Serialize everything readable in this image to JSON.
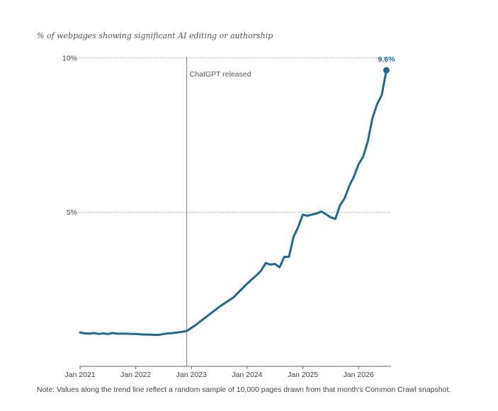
{
  "chart_data": {
    "type": "line",
    "subtitle": "% of webpages showing significant AI editing or authorship",
    "note": "Note: Values along the trend line reflect a random sample of 10,000 pages drawn from that month's Common Crawl snapshot.",
    "y_ticks": [
      {
        "value": 10,
        "label": "10%"
      },
      {
        "value": 5,
        "label": "5%"
      }
    ],
    "x_ticks": [
      {
        "value": "2021-01",
        "label": "Jan 2021"
      },
      {
        "value": "2022-01",
        "label": "Jan 2022"
      },
      {
        "value": "2023-01",
        "label": "Jan 2023"
      },
      {
        "value": "2024-01",
        "label": "Jan 2024"
      },
      {
        "value": "2025-01",
        "label": "Jan 2025"
      },
      {
        "value": "2026-01",
        "label": "Jan 2026"
      }
    ],
    "ylim": [
      0,
      10.5
    ],
    "xlim": [
      "2021-01",
      "2026-08"
    ],
    "grid": "dotted horizontal at tick values",
    "annotation": {
      "x": "2022-12",
      "label": "ChatGPT released"
    },
    "end_label": "9.6%",
    "colors": {
      "line": "#1f6b8e",
      "end_label": "#1f6b8e",
      "grid": "#888888",
      "axis": "#666666"
    },
    "series": [
      {
        "x": [
          "2021-01",
          "2021-02",
          "2021-03",
          "2021-04",
          "2021-05",
          "2021-06",
          "2021-07",
          "2021-08",
          "2021-09",
          "2021-10",
          "2021-11",
          "2021-12",
          "2022-01",
          "2022-02",
          "2022-03",
          "2022-04",
          "2022-05",
          "2022-06",
          "2022-07",
          "2022-08",
          "2022-09",
          "2022-10",
          "2022-11",
          "2022-12",
          "2023-01",
          "2023-02",
          "2023-03",
          "2023-04",
          "2023-05",
          "2023-06",
          "2023-07",
          "2023-08",
          "2023-09",
          "2023-10",
          "2023-11",
          "2023-12",
          "2024-01",
          "2024-02",
          "2024-03",
          "2024-04",
          "2024-05",
          "2024-06",
          "2024-07",
          "2024-08",
          "2024-09",
          "2024-10",
          "2024-11",
          "2024-12",
          "2025-01",
          "2025-02",
          "2025-03",
          "2025-04",
          "2025-05",
          "2025-06",
          "2025-07",
          "2025-08",
          "2025-09",
          "2025-10",
          "2025-11",
          "2025-12",
          "2026-01",
          "2026-02",
          "2026-03",
          "2026-04",
          "2026-05",
          "2026-06",
          "2026-07"
        ],
        "values": [
          1.1,
          1.07,
          1.06,
          1.08,
          1.05,
          1.07,
          1.05,
          1.08,
          1.06,
          1.06,
          1.06,
          1.05,
          1.05,
          1.04,
          1.03,
          1.03,
          1.02,
          1.02,
          1.05,
          1.07,
          1.08,
          1.1,
          1.12,
          1.15,
          1.25,
          1.35,
          1.47,
          1.58,
          1.7,
          1.81,
          1.93,
          2.03,
          2.13,
          2.23,
          2.38,
          2.53,
          2.68,
          2.82,
          2.95,
          3.1,
          3.35,
          3.3,
          3.32,
          3.21,
          3.55,
          3.55,
          4.2,
          4.52,
          4.92,
          4.88,
          4.92,
          4.96,
          5.02,
          4.93,
          4.83,
          4.78,
          5.22,
          5.45,
          5.85,
          6.15,
          6.55,
          6.8,
          7.3,
          8.05,
          8.5,
          8.8,
          9.6
        ]
      }
    ]
  }
}
